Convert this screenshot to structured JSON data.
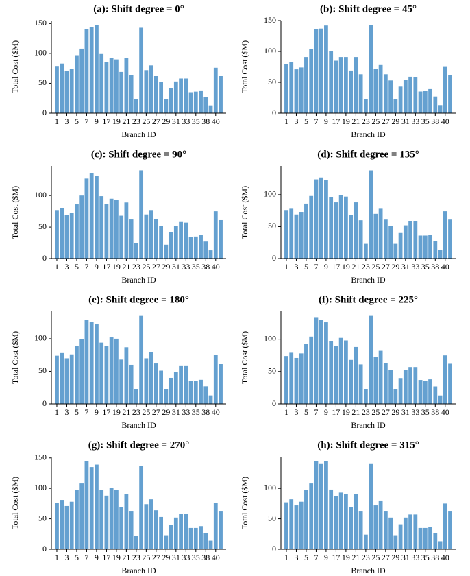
{
  "chart_data": [
    {
      "type": "bar",
      "title": "(a): Shift degree = 0°",
      "xlabel": "Branch ID",
      "ylabel": "Total Cost ($M)",
      "color": "#64a0d0",
      "categories": [
        "1",
        null,
        "3",
        null,
        "5",
        null,
        "7",
        null,
        "9",
        null,
        "17",
        null,
        "19",
        null,
        "21",
        null,
        "23",
        null,
        "25",
        null,
        "27",
        null,
        "29",
        null,
        "31",
        null,
        "33",
        null,
        "35",
        null,
        "38",
        null,
        "40",
        null
      ],
      "values": [
        79,
        83,
        71,
        74,
        97,
        108,
        141,
        144,
        148,
        99,
        86,
        92,
        90,
        69,
        92,
        64,
        24,
        143,
        72,
        80,
        62,
        52,
        23,
        42,
        53,
        58,
        58,
        35,
        36,
        38,
        27,
        13,
        76,
        62
      ],
      "ylim": [
        0,
        155
      ],
      "yticks": [
        0,
        50,
        100,
        150
      ]
    },
    {
      "type": "bar",
      "title": "(b): Shift degree = 45°",
      "xlabel": "Branch ID",
      "ylabel": "Total Cost ($M)",
      "color": "#64a0d0",
      "categories": [
        "1",
        null,
        "3",
        null,
        "5",
        null,
        "7",
        null,
        "9",
        null,
        "17",
        null,
        "19",
        null,
        "21",
        null,
        "23",
        null,
        "25",
        null,
        "27",
        null,
        "29",
        null,
        "31",
        null,
        "33",
        null,
        "35",
        null,
        "38",
        null,
        "40",
        null
      ],
      "values": [
        79,
        83,
        71,
        74,
        91,
        104,
        136,
        137,
        142,
        100,
        85,
        91,
        91,
        69,
        91,
        63,
        23,
        143,
        72,
        78,
        63,
        53,
        23,
        43,
        54,
        59,
        58,
        35,
        36,
        39,
        27,
        13,
        76,
        62
      ],
      "ylim": [
        0,
        150
      ],
      "yticks": [
        0,
        50,
        100,
        150
      ]
    },
    {
      "type": "bar",
      "title": "(c): Shift degree = 90°",
      "xlabel": "Branch ID",
      "ylabel": "Total Cost ($M)",
      "color": "#64a0d0",
      "categories": [
        "1",
        null,
        "3",
        null,
        "5",
        null,
        "7",
        null,
        "9",
        null,
        "17",
        null,
        "19",
        null,
        "21",
        null,
        "23",
        null,
        "25",
        null,
        "27",
        null,
        "29",
        null,
        "31",
        null,
        "33",
        null,
        "35",
        null,
        "38",
        null,
        "40",
        null
      ],
      "values": [
        77,
        80,
        69,
        72,
        86,
        100,
        127,
        135,
        131,
        99,
        87,
        95,
        93,
        68,
        89,
        62,
        24,
        140,
        70,
        77,
        63,
        52,
        22,
        42,
        52,
        58,
        57,
        34,
        35,
        37,
        27,
        13,
        75,
        61
      ],
      "ylim": [
        0,
        147
      ],
      "yticks": [
        0,
        50,
        100
      ]
    },
    {
      "type": "bar",
      "title": "(d): Shift degree = 135°",
      "xlabel": "Branch ID",
      "ylabel": "Total Cost ($M)",
      "color": "#64a0d0",
      "categories": [
        "1",
        null,
        "3",
        null,
        "5",
        null,
        "7",
        null,
        "9",
        null,
        "17",
        null,
        "19",
        null,
        "21",
        null,
        "23",
        null,
        "25",
        null,
        "27",
        null,
        "29",
        null,
        "31",
        null,
        "33",
        null,
        "35",
        null,
        "38",
        null,
        "40",
        null
      ],
      "values": [
        76,
        78,
        69,
        73,
        86,
        98,
        124,
        127,
        123,
        96,
        88,
        99,
        97,
        68,
        88,
        60,
        23,
        138,
        70,
        78,
        61,
        51,
        23,
        40,
        52,
        59,
        59,
        36,
        36,
        37,
        27,
        13,
        74,
        61
      ],
      "ylim": [
        0,
        145
      ],
      "yticks": [
        0,
        50,
        100
      ]
    },
    {
      "type": "bar",
      "title": "(e): Shift degree = 180°",
      "xlabel": "Branch ID",
      "ylabel": "Total Cost ($M)",
      "color": "#64a0d0",
      "categories": [
        "1",
        null,
        "3",
        null,
        "5",
        null,
        "7",
        null,
        "9",
        null,
        "17",
        null,
        "19",
        null,
        "21",
        null,
        "23",
        null,
        "25",
        null,
        "27",
        null,
        "29",
        null,
        "31",
        null,
        "33",
        null,
        "35",
        null,
        "38",
        null,
        "40",
        null
      ],
      "values": [
        74,
        78,
        70,
        76,
        89,
        99,
        129,
        126,
        122,
        94,
        89,
        102,
        100,
        68,
        87,
        60,
        23,
        135,
        70,
        79,
        62,
        51,
        23,
        40,
        49,
        58,
        58,
        35,
        35,
        37,
        27,
        13,
        75,
        61
      ],
      "ylim": [
        0,
        142
      ],
      "yticks": [
        0,
        50,
        100
      ]
    },
    {
      "type": "bar",
      "title": "(f): Shift degree = 225°",
      "xlabel": "Branch ID",
      "ylabel": "Total Cost ($M)",
      "color": "#64a0d0",
      "categories": [
        "1",
        null,
        "3",
        null,
        "5",
        null,
        "7",
        null,
        "9",
        null,
        "17",
        null,
        "19",
        null,
        "21",
        null,
        "23",
        null,
        "25",
        null,
        "27",
        null,
        "29",
        null,
        "31",
        null,
        "33",
        null,
        "35",
        null,
        "38",
        null,
        "40",
        null
      ],
      "values": [
        74,
        79,
        71,
        78,
        93,
        104,
        133,
        130,
        126,
        97,
        90,
        102,
        98,
        68,
        88,
        61,
        23,
        136,
        73,
        82,
        63,
        52,
        23,
        40,
        52,
        57,
        57,
        37,
        35,
        38,
        27,
        13,
        75,
        62
      ],
      "ylim": [
        0,
        143
      ],
      "yticks": [
        0,
        50,
        100
      ]
    },
    {
      "type": "bar",
      "title": "(g): Shift degree = 270°",
      "xlabel": "Branch ID",
      "ylabel": "Total Cost ($M)",
      "color": "#64a0d0",
      "categories": [
        "1",
        null,
        "3",
        null,
        "5",
        null,
        "7",
        null,
        "9",
        null,
        "17",
        null,
        "19",
        null,
        "21",
        null,
        "23",
        null,
        "25",
        null,
        "27",
        null,
        "29",
        null,
        "31",
        null,
        "33",
        null,
        "35",
        null,
        "38",
        null,
        "40",
        null
      ],
      "values": [
        76,
        81,
        71,
        78,
        97,
        108,
        145,
        135,
        139,
        97,
        88,
        101,
        97,
        69,
        91,
        63,
        22,
        137,
        74,
        82,
        64,
        53,
        23,
        40,
        52,
        58,
        58,
        35,
        35,
        38,
        26,
        14,
        76,
        63
      ],
      "ylim": [
        0,
        152
      ],
      "yticks": [
        0,
        50,
        100,
        150
      ]
    },
    {
      "type": "bar",
      "title": "(h): Shift degree = 315°",
      "xlabel": "Branch ID",
      "ylabel": "Total Cost ($M)",
      "color": "#64a0d0",
      "categories": [
        "1",
        null,
        "3",
        null,
        "5",
        null,
        "7",
        null,
        "9",
        null,
        "17",
        null,
        "19",
        null,
        "21",
        null,
        "23",
        null,
        "25",
        null,
        "27",
        null,
        "29",
        null,
        "31",
        null,
        "33",
        null,
        "35",
        null,
        "38",
        null,
        "40",
        null
      ],
      "values": [
        77,
        82,
        72,
        78,
        97,
        108,
        145,
        141,
        145,
        98,
        87,
        93,
        91,
        69,
        91,
        63,
        24,
        141,
        72,
        80,
        63,
        52,
        23,
        41,
        52,
        57,
        57,
        35,
        35,
        37,
        26,
        13,
        75,
        63
      ],
      "ylim": [
        0,
        152
      ],
      "yticks": [
        0,
        50,
        100
      ]
    }
  ]
}
